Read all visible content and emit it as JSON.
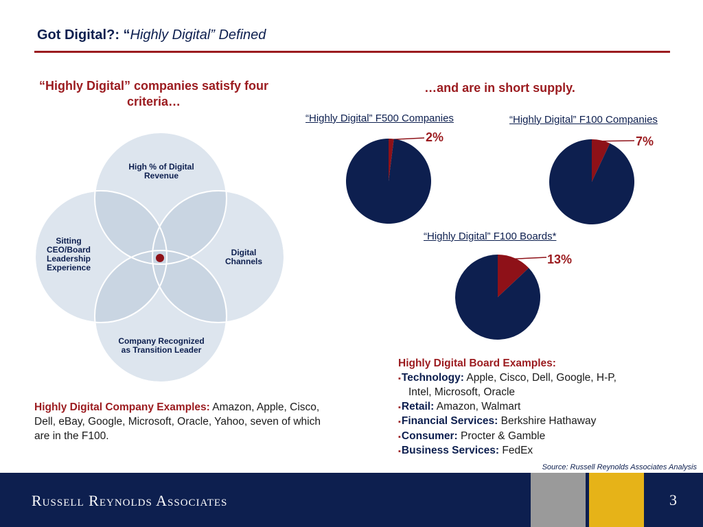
{
  "header": {
    "title_prefix": "Got Digital?: ",
    "title_open_quote": "“",
    "title_italic": "Highly Digital” Defined"
  },
  "left": {
    "heading": "“Highly Digital” companies satisfy four criteria…",
    "venn": {
      "top": "High % of Digital Revenue",
      "right": "Digital Channels",
      "bottom": "Company Recognized as Transition Leader",
      "left": "Sitting CEO/Board Leadership Experience",
      "circle_color": "#dde5ee",
      "overlap_color": "#c7d3e0",
      "center_dot_color": "#8e1118"
    },
    "examples_label": "Highly Digital Company Examples:",
    "examples_text": " Amazon, Apple, Cisco, Dell, eBay, Google, Microsoft, Oracle, Yahoo, seven of which are in the F100."
  },
  "right": {
    "heading": "…and are in short supply."
  },
  "chart_data": [
    {
      "type": "pie",
      "title": "“Highly Digital” F500 Companies",
      "values": [
        2,
        98
      ],
      "highlight_label": "2%",
      "colors": [
        "#8e1118",
        "#0d1f4f"
      ]
    },
    {
      "type": "pie",
      "title": "“Highly Digital” F100 Companies",
      "values": [
        7,
        93
      ],
      "highlight_label": "7%",
      "colors": [
        "#8e1118",
        "#0d1f4f"
      ]
    },
    {
      "type": "pie",
      "title": "“Highly Digital” F100 Boards*",
      "values": [
        13,
        87
      ],
      "highlight_label": "13%",
      "colors": [
        "#8e1118",
        "#0d1f4f"
      ]
    }
  ],
  "board_examples": {
    "heading": "Highly Digital Board Examples:",
    "bullet": "▪",
    "items": [
      {
        "label": "Technology:",
        "text": " Apple, Cisco, Dell, Google, H-P,",
        "cont": "Intel, Microsoft, Oracle"
      },
      {
        "label": "Retail:",
        "text": " Amazon, Walmart"
      },
      {
        "label": "Financial Services:",
        "text": " Berkshire Hathaway"
      },
      {
        "label": "Consumer:",
        "text": " Procter & Gamble"
      },
      {
        "label": "Business Services:",
        "text": " FedEx"
      }
    ]
  },
  "source": "Source: Russell Reynolds Associates Analysis",
  "footer": {
    "firm": "Russell Reynolds Associates",
    "page_number": "3",
    "bg_color": "#0d1f4f",
    "gray_color": "#9a9a9a",
    "gold_color": "#e6b318"
  }
}
